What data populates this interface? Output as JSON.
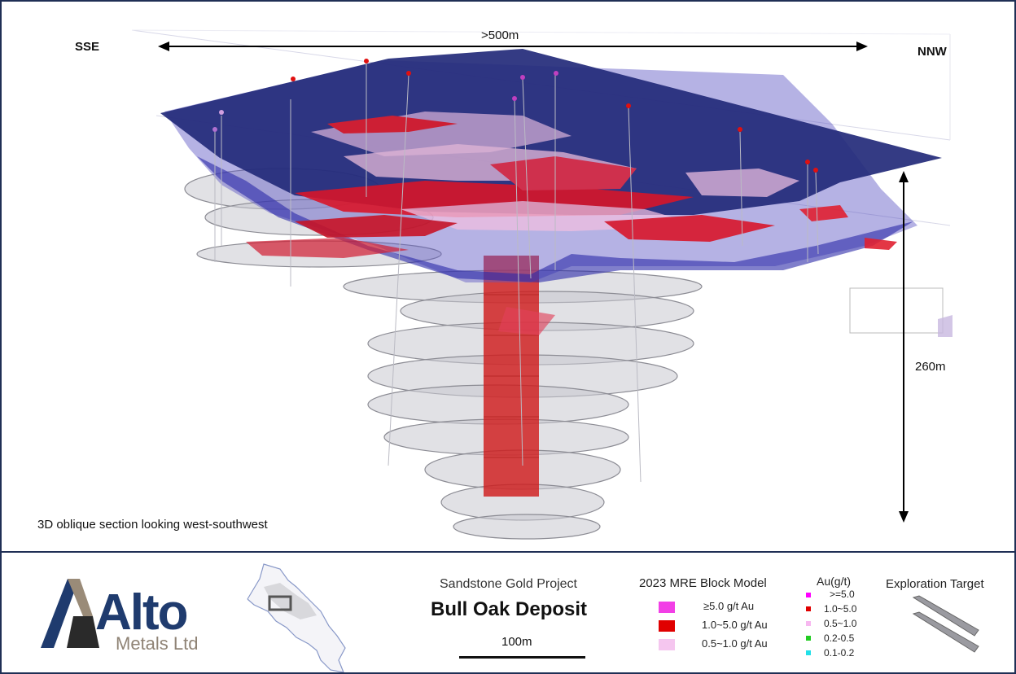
{
  "view": {
    "left_direction": "SSE",
    "right_direction": "NNW",
    "width_label": ">500m",
    "depth_label": "260m",
    "caption": "3D oblique section looking west-southwest"
  },
  "logo": {
    "name": "Alto",
    "subtitle": "Metals Ltd"
  },
  "title": {
    "project": "Sandstone Gold Project",
    "deposit": "Bull Oak Deposit",
    "scale": "100m"
  },
  "block_model": {
    "title": "2023 MRE Block Model",
    "items": [
      {
        "label": "≥5.0 g/t Au",
        "color": "#f23fe6"
      },
      {
        "label": "1.0~5.0 g/t Au",
        "color": "#e00000"
      },
      {
        "label": "0.5~1.0 g/t Au",
        "color": "#f5c6ef"
      }
    ]
  },
  "au": {
    "title": "Au(g/t)",
    "items": [
      {
        "label": ">=5.0",
        "color": "#ff00ff"
      },
      {
        "label": "1.0~5.0",
        "color": "#e00000"
      },
      {
        "label": "0.5~1.0",
        "color": "#f7b8f0"
      },
      {
        "label": "0.2-0.5",
        "color": "#22cc22"
      },
      {
        "label": "0.1-0.2",
        "color": "#22e0e8"
      }
    ]
  },
  "exploration": {
    "title": "Exploration Target"
  }
}
